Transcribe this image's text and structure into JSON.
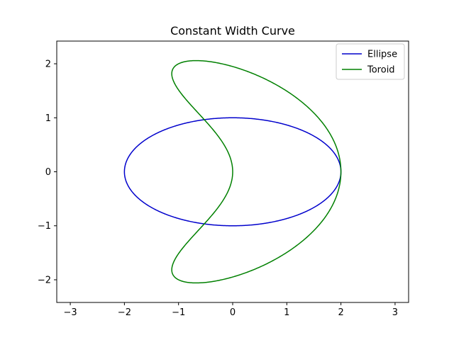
{
  "chart_data": {
    "type": "line",
    "title": "Constant Width Curve",
    "xlabel": "",
    "ylabel": "",
    "xlim": [
      -3.25,
      3.25
    ],
    "ylim": [
      -2.42,
      2.42
    ],
    "xticks": [
      -3,
      -2,
      -1,
      0,
      1,
      2,
      3
    ],
    "yticks": [
      -2,
      -1,
      0,
      1,
      2
    ],
    "xtick_labels": [
      "−3",
      "−2",
      "−1",
      "0",
      "1",
      "2",
      "3"
    ],
    "ytick_labels": [
      "−2",
      "−1",
      "0",
      "1",
      "2"
    ],
    "grid": false,
    "legend_position": "top-right",
    "series": [
      {
        "name": "Ellipse",
        "color": "#0000cc",
        "curve": "ellipse",
        "params": {
          "a": 2,
          "b": 1
        }
      },
      {
        "name": "Toroid",
        "color": "#008000",
        "curve": "parametric",
        "params": {
          "x": "cos(t) + cos(2t)",
          "y": "2 sin(t) + 0.25 sin(2t)"
        }
      }
    ]
  }
}
